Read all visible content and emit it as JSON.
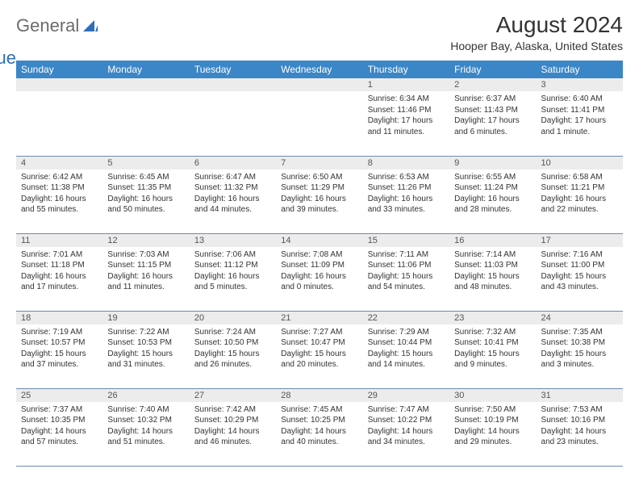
{
  "logo": {
    "text1": "General",
    "text2": "Blue"
  },
  "title": "August 2024",
  "location": "Hooper Bay, Alaska, United States",
  "colors": {
    "header_bg": "#3b86c7",
    "header_text": "#ffffff",
    "daynum_bg": "#ececec",
    "border": "#6e8bad",
    "logo_gray": "#6b6b6b",
    "logo_blue": "#2d6fb8"
  },
  "weekdays": [
    "Sunday",
    "Monday",
    "Tuesday",
    "Wednesday",
    "Thursday",
    "Friday",
    "Saturday"
  ],
  "weeks": [
    [
      {
        "n": "",
        "sr": "",
        "ss": "",
        "dl": ""
      },
      {
        "n": "",
        "sr": "",
        "ss": "",
        "dl": ""
      },
      {
        "n": "",
        "sr": "",
        "ss": "",
        "dl": ""
      },
      {
        "n": "",
        "sr": "",
        "ss": "",
        "dl": ""
      },
      {
        "n": "1",
        "sr": "Sunrise: 6:34 AM",
        "ss": "Sunset: 11:46 PM",
        "dl": "Daylight: 17 hours and 11 minutes."
      },
      {
        "n": "2",
        "sr": "Sunrise: 6:37 AM",
        "ss": "Sunset: 11:43 PM",
        "dl": "Daylight: 17 hours and 6 minutes."
      },
      {
        "n": "3",
        "sr": "Sunrise: 6:40 AM",
        "ss": "Sunset: 11:41 PM",
        "dl": "Daylight: 17 hours and 1 minute."
      }
    ],
    [
      {
        "n": "4",
        "sr": "Sunrise: 6:42 AM",
        "ss": "Sunset: 11:38 PM",
        "dl": "Daylight: 16 hours and 55 minutes."
      },
      {
        "n": "5",
        "sr": "Sunrise: 6:45 AM",
        "ss": "Sunset: 11:35 PM",
        "dl": "Daylight: 16 hours and 50 minutes."
      },
      {
        "n": "6",
        "sr": "Sunrise: 6:47 AM",
        "ss": "Sunset: 11:32 PM",
        "dl": "Daylight: 16 hours and 44 minutes."
      },
      {
        "n": "7",
        "sr": "Sunrise: 6:50 AM",
        "ss": "Sunset: 11:29 PM",
        "dl": "Daylight: 16 hours and 39 minutes."
      },
      {
        "n": "8",
        "sr": "Sunrise: 6:53 AM",
        "ss": "Sunset: 11:26 PM",
        "dl": "Daylight: 16 hours and 33 minutes."
      },
      {
        "n": "9",
        "sr": "Sunrise: 6:55 AM",
        "ss": "Sunset: 11:24 PM",
        "dl": "Daylight: 16 hours and 28 minutes."
      },
      {
        "n": "10",
        "sr": "Sunrise: 6:58 AM",
        "ss": "Sunset: 11:21 PM",
        "dl": "Daylight: 16 hours and 22 minutes."
      }
    ],
    [
      {
        "n": "11",
        "sr": "Sunrise: 7:01 AM",
        "ss": "Sunset: 11:18 PM",
        "dl": "Daylight: 16 hours and 17 minutes."
      },
      {
        "n": "12",
        "sr": "Sunrise: 7:03 AM",
        "ss": "Sunset: 11:15 PM",
        "dl": "Daylight: 16 hours and 11 minutes."
      },
      {
        "n": "13",
        "sr": "Sunrise: 7:06 AM",
        "ss": "Sunset: 11:12 PM",
        "dl": "Daylight: 16 hours and 5 minutes."
      },
      {
        "n": "14",
        "sr": "Sunrise: 7:08 AM",
        "ss": "Sunset: 11:09 PM",
        "dl": "Daylight: 16 hours and 0 minutes."
      },
      {
        "n": "15",
        "sr": "Sunrise: 7:11 AM",
        "ss": "Sunset: 11:06 PM",
        "dl": "Daylight: 15 hours and 54 minutes."
      },
      {
        "n": "16",
        "sr": "Sunrise: 7:14 AM",
        "ss": "Sunset: 11:03 PM",
        "dl": "Daylight: 15 hours and 48 minutes."
      },
      {
        "n": "17",
        "sr": "Sunrise: 7:16 AM",
        "ss": "Sunset: 11:00 PM",
        "dl": "Daylight: 15 hours and 43 minutes."
      }
    ],
    [
      {
        "n": "18",
        "sr": "Sunrise: 7:19 AM",
        "ss": "Sunset: 10:57 PM",
        "dl": "Daylight: 15 hours and 37 minutes."
      },
      {
        "n": "19",
        "sr": "Sunrise: 7:22 AM",
        "ss": "Sunset: 10:53 PM",
        "dl": "Daylight: 15 hours and 31 minutes."
      },
      {
        "n": "20",
        "sr": "Sunrise: 7:24 AM",
        "ss": "Sunset: 10:50 PM",
        "dl": "Daylight: 15 hours and 26 minutes."
      },
      {
        "n": "21",
        "sr": "Sunrise: 7:27 AM",
        "ss": "Sunset: 10:47 PM",
        "dl": "Daylight: 15 hours and 20 minutes."
      },
      {
        "n": "22",
        "sr": "Sunrise: 7:29 AM",
        "ss": "Sunset: 10:44 PM",
        "dl": "Daylight: 15 hours and 14 minutes."
      },
      {
        "n": "23",
        "sr": "Sunrise: 7:32 AM",
        "ss": "Sunset: 10:41 PM",
        "dl": "Daylight: 15 hours and 9 minutes."
      },
      {
        "n": "24",
        "sr": "Sunrise: 7:35 AM",
        "ss": "Sunset: 10:38 PM",
        "dl": "Daylight: 15 hours and 3 minutes."
      }
    ],
    [
      {
        "n": "25",
        "sr": "Sunrise: 7:37 AM",
        "ss": "Sunset: 10:35 PM",
        "dl": "Daylight: 14 hours and 57 minutes."
      },
      {
        "n": "26",
        "sr": "Sunrise: 7:40 AM",
        "ss": "Sunset: 10:32 PM",
        "dl": "Daylight: 14 hours and 51 minutes."
      },
      {
        "n": "27",
        "sr": "Sunrise: 7:42 AM",
        "ss": "Sunset: 10:29 PM",
        "dl": "Daylight: 14 hours and 46 minutes."
      },
      {
        "n": "28",
        "sr": "Sunrise: 7:45 AM",
        "ss": "Sunset: 10:25 PM",
        "dl": "Daylight: 14 hours and 40 minutes."
      },
      {
        "n": "29",
        "sr": "Sunrise: 7:47 AM",
        "ss": "Sunset: 10:22 PM",
        "dl": "Daylight: 14 hours and 34 minutes."
      },
      {
        "n": "30",
        "sr": "Sunrise: 7:50 AM",
        "ss": "Sunset: 10:19 PM",
        "dl": "Daylight: 14 hours and 29 minutes."
      },
      {
        "n": "31",
        "sr": "Sunrise: 7:53 AM",
        "ss": "Sunset: 10:16 PM",
        "dl": "Daylight: 14 hours and 23 minutes."
      }
    ]
  ]
}
